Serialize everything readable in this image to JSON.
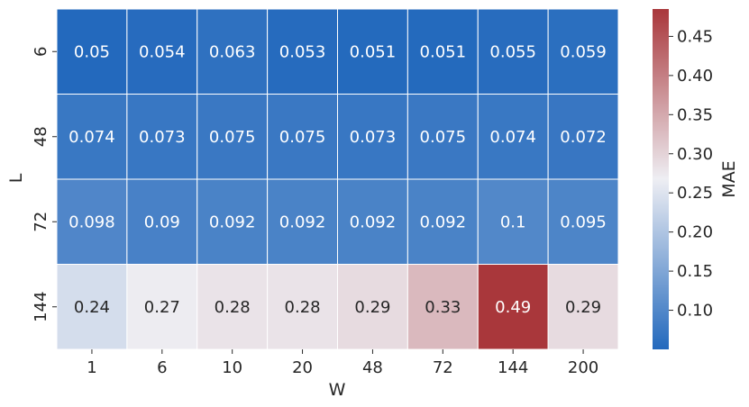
{
  "chart_data": {
    "type": "heatmap",
    "title": "",
    "xlabel": "W",
    "ylabel": "L",
    "x_categories": [
      "1",
      "6",
      "10",
      "20",
      "48",
      "72",
      "144",
      "200"
    ],
    "y_categories": [
      "6",
      "48",
      "72",
      "144"
    ],
    "values": [
      [
        0.05,
        0.054,
        0.063,
        0.053,
        0.051,
        0.051,
        0.055,
        0.059
      ],
      [
        0.074,
        0.073,
        0.075,
        0.075,
        0.073,
        0.075,
        0.074,
        0.072
      ],
      [
        0.098,
        0.09,
        0.092,
        0.092,
        0.092,
        0.092,
        0.1,
        0.095
      ],
      [
        0.24,
        0.27,
        0.28,
        0.28,
        0.29,
        0.33,
        0.49,
        0.29
      ]
    ],
    "labels": [
      [
        "0.05",
        "0.054",
        "0.063",
        "0.053",
        "0.051",
        "0.051",
        "0.055",
        "0.059"
      ],
      [
        "0.074",
        "0.073",
        "0.075",
        "0.075",
        "0.073",
        "0.075",
        "0.074",
        "0.072"
      ],
      [
        "0.098",
        "0.09",
        "0.092",
        "0.092",
        "0.092",
        "0.092",
        "0.1",
        "0.095"
      ],
      [
        "0.24",
        "0.27",
        "0.28",
        "0.28",
        "0.29",
        "0.33",
        "0.49",
        "0.29"
      ]
    ],
    "colorbar": {
      "label": "MAE",
      "colormap": "vlag",
      "vmin": 0.05,
      "vmax": 0.485,
      "ticks": [
        0.1,
        0.15,
        0.2,
        0.25,
        0.3,
        0.35,
        0.4,
        0.45
      ],
      "tick_labels": [
        "0.10",
        "0.15",
        "0.20",
        "0.25",
        "0.30",
        "0.35",
        "0.40",
        "0.45"
      ],
      "colors": [
        "#2369bd",
        "#eeeef3",
        "#a9373b"
      ]
    },
    "grid": false
  }
}
